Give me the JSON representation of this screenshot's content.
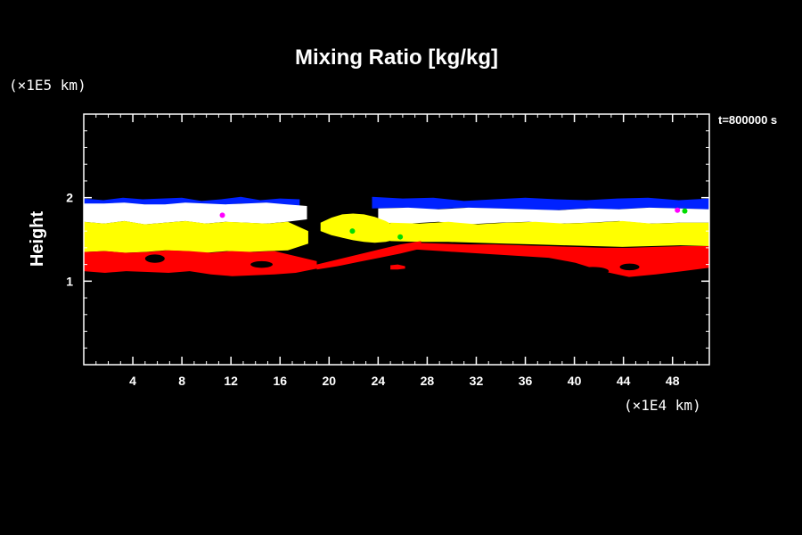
{
  "chart_data": {
    "type": "heatmap",
    "title": "Mixing Ratio [kg/kg]",
    "xlabel": "",
    "ylabel": "Height",
    "x_scale_label": "(×1E4 km)",
    "y_scale_label": "(×1E5 km)",
    "time_label": "t=800000 s",
    "xlim": [
      0,
      51
    ],
    "ylim": [
      0,
      3
    ],
    "x_ticks": [
      4,
      8,
      12,
      16,
      20,
      24,
      28,
      32,
      36,
      40,
      44,
      48
    ],
    "y_ticks": [
      1,
      2
    ],
    "x_minor_step": 1,
    "y_minor_step": 0.2,
    "background": "#000000",
    "colors": {
      "blue": "#0022ff",
      "white": "#ffffff",
      "yellow": "#ffff00",
      "red": "#ff0000",
      "green": "#00dd00",
      "magenta": "#ff00ff"
    },
    "bands": [
      {
        "name": "blue",
        "segments": [
          {
            "x": [
              0.0,
              17.6
            ],
            "y_top": [
              1.99,
              1.97,
              2.0,
              1.98,
              1.99,
              2.0,
              1.96,
              1.98,
              2.01,
              1.97,
              1.99,
              1.98
            ],
            "y_bottom": [
              1.92,
              1.92,
              1.93,
              1.92,
              1.91,
              1.93,
              1.92,
              1.91,
              1.93,
              1.92,
              1.92,
              1.9
            ]
          },
          {
            "x": [
              23.5,
              51.0
            ],
            "y_top": [
              2.01,
              1.99,
              2.0,
              1.96,
              1.98,
              2.0,
              1.98,
              1.97,
              1.99,
              2.0,
              1.97,
              1.99
            ],
            "y_bottom": [
              1.87,
              1.88,
              1.86,
              1.88,
              1.87,
              1.86,
              1.85,
              1.87,
              1.86,
              1.88,
              1.87,
              1.86
            ]
          }
        ]
      },
      {
        "name": "white",
        "segments": [
          {
            "x": [
              0.0,
              18.2
            ],
            "y_top": [
              1.93,
              1.93,
              1.94,
              1.92,
              1.92,
              1.94,
              1.93,
              1.92,
              1.93,
              1.94,
              1.92,
              1.9
            ],
            "y_bottom": [
              1.71,
              1.69,
              1.72,
              1.68,
              1.7,
              1.72,
              1.69,
              1.71,
              1.7,
              1.69,
              1.71,
              1.74
            ]
          },
          {
            "x": [
              24.0,
              51.0
            ],
            "y_top": [
              1.87,
              1.88,
              1.86,
              1.88,
              1.87,
              1.86,
              1.85,
              1.87,
              1.86,
              1.88,
              1.87,
              1.86
            ],
            "y_bottom": [
              1.7,
              1.69,
              1.71,
              1.68,
              1.7,
              1.71,
              1.69,
              1.7,
              1.72,
              1.69,
              1.7,
              1.7
            ]
          }
        ]
      },
      {
        "name": "yellow",
        "segments": [
          {
            "x": [
              0.0,
              18.3
            ],
            "y_top": [
              1.71,
              1.69,
              1.72,
              1.68,
              1.7,
              1.72,
              1.69,
              1.71,
              1.7,
              1.69,
              1.71,
              1.6
            ],
            "y_bottom": [
              1.35,
              1.36,
              1.34,
              1.35,
              1.37,
              1.36,
              1.34,
              1.36,
              1.35,
              1.36,
              1.37,
              1.45
            ]
          },
          {
            "x": [
              19.3,
              25.5
            ],
            "y_top": [
              1.7,
              1.76,
              1.8,
              1.81,
              1.8,
              1.77,
              1.72,
              1.65
            ],
            "y_bottom": [
              1.6,
              1.55,
              1.52,
              1.49,
              1.47,
              1.46,
              1.47,
              1.5
            ]
          },
          {
            "x": [
              25.0,
              51.0
            ],
            "y_top": [
              1.7,
              1.69,
              1.71,
              1.68,
              1.7,
              1.71,
              1.69,
              1.7,
              1.72,
              1.69,
              1.7,
              1.7
            ],
            "y_bottom": [
              1.48,
              1.47,
              1.47,
              1.46,
              1.45,
              1.44,
              1.43,
              1.42,
              1.41,
              1.42,
              1.43,
              1.42
            ]
          }
        ]
      },
      {
        "name": "red",
        "segments": [
          {
            "x": [
              0.0,
              19.0
            ],
            "y_top": [
              1.35,
              1.36,
              1.34,
              1.35,
              1.37,
              1.36,
              1.34,
              1.36,
              1.35,
              1.36,
              1.3,
              1.24
            ],
            "y_bottom": [
              1.12,
              1.1,
              1.12,
              1.11,
              1.1,
              1.12,
              1.08,
              1.06,
              1.07,
              1.08,
              1.1,
              1.15
            ]
          },
          {
            "x": [
              19.0,
              27.5
            ],
            "y_top": [
              1.2,
              1.26,
              1.32,
              1.38,
              1.44,
              1.48
            ],
            "y_bottom": [
              1.14,
              1.18,
              1.23,
              1.28,
              1.33,
              1.39
            ]
          },
          {
            "x": [
              27.0,
              51.0
            ],
            "y_top": [
              1.46,
              1.45,
              1.44,
              1.44,
              1.43,
              1.42,
              1.41,
              1.4,
              1.4,
              1.41,
              1.42,
              1.42
            ],
            "y_bottom": [
              1.38,
              1.36,
              1.34,
              1.32,
              1.3,
              1.28,
              1.22,
              1.12,
              1.05,
              1.08,
              1.12,
              1.16
            ]
          }
        ]
      },
      {
        "name": "red",
        "segments": [
          {
            "x": [
              25.0,
              26.2
            ],
            "y_top": [
              1.19,
              1.2,
              1.18
            ],
            "y_bottom": [
              1.14,
              1.14,
              1.15
            ]
          }
        ]
      }
    ],
    "holes": [
      {
        "x": 5.8,
        "y": 1.27,
        "rx": 0.8,
        "ry": 0.05
      },
      {
        "x": 14.5,
        "y": 1.2,
        "rx": 0.9,
        "ry": 0.04
      },
      {
        "x": 41.5,
        "y": 1.12,
        "rx": 1.3,
        "ry": 0.05
      },
      {
        "x": 44.5,
        "y": 1.17,
        "rx": 0.8,
        "ry": 0.04
      }
    ],
    "specks": [
      {
        "color": "green",
        "x": 21.9,
        "y": 1.6
      },
      {
        "color": "green",
        "x": 25.8,
        "y": 1.53
      },
      {
        "color": "magenta",
        "x": 11.3,
        "y": 1.79
      },
      {
        "color": "magenta",
        "x": 48.4,
        "y": 1.85
      },
      {
        "color": "green",
        "x": 49.0,
        "y": 1.84
      }
    ]
  }
}
